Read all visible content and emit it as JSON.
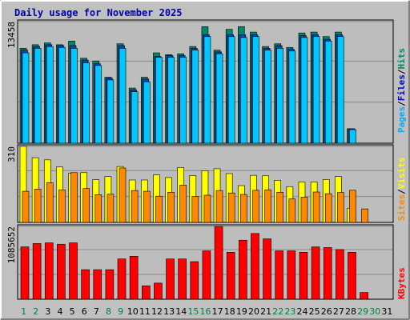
{
  "title": "Daily usage for November 2025",
  "colors": {
    "background": "#c0c0c0",
    "panel": "#bdbdbd",
    "grid": "#8a8a8a",
    "pages": "#00c8ff",
    "files": "#0044cc",
    "hits": "#008866",
    "visits": "#ffff00",
    "sites": "#ff8800",
    "kbytes": "#ff0000",
    "weekend": "#008040",
    "weekday": "#000000",
    "title": "#0000aa"
  },
  "vertical_labels": {
    "top": [
      {
        "text": "Pages",
        "color": "#00aaff"
      },
      {
        "text": "/",
        "color": "#000000"
      },
      {
        "text": "Files",
        "color": "#0000cc"
      },
      {
        "text": "/",
        "color": "#000000"
      },
      {
        "text": "Hits",
        "color": "#008866"
      }
    ],
    "middle": [
      {
        "text": "Sites",
        "color": "#ff8800"
      },
      {
        "text": "/",
        "color": "#000000"
      },
      {
        "text": "Visits",
        "color": "#ffff00"
      }
    ],
    "bottom": [
      {
        "text": "KBytes",
        "color": "#ff0000"
      }
    ]
  },
  "chart_data": [
    {
      "type": "bar",
      "title": "Daily usage for November 2025",
      "x": [
        "1",
        "2",
        "3",
        "4",
        "5",
        "6",
        "7",
        "8",
        "9",
        "10",
        "11",
        "12",
        "13",
        "14",
        "15",
        "16",
        "17",
        "18",
        "19",
        "20",
        "21",
        "22",
        "23",
        "24",
        "25",
        "26",
        "27",
        "28",
        "29",
        "30",
        "31"
      ],
      "weekend_days": [
        "1",
        "2",
        "8",
        "9",
        "15",
        "16",
        "22",
        "23",
        "29",
        "30"
      ],
      "ymax_label": "13458",
      "ylim": [
        0,
        13458
      ],
      "series": [
        {
          "name": "Hits",
          "values": [
            10500,
            10900,
            11100,
            10900,
            11300,
            9400,
            9100,
            7300,
            11000,
            6100,
            7300,
            10000,
            9800,
            9900,
            10700,
            12900,
            10300,
            12600,
            12900,
            12300,
            10700,
            11000,
            10600,
            12200,
            12300,
            11800,
            12300,
            1600,
            0,
            0,
            0
          ]
        },
        {
          "name": "Files",
          "values": [
            10300,
            10700,
            10900,
            10800,
            10800,
            9200,
            8800,
            7200,
            10800,
            5900,
            7100,
            9600,
            9700,
            9700,
            10500,
            12000,
            10100,
            12000,
            12000,
            12000,
            10500,
            10800,
            10400,
            11900,
            12000,
            11500,
            12000,
            1600,
            0,
            0,
            0
          ]
        },
        {
          "name": "Pages",
          "values": [
            10000,
            10500,
            10700,
            10600,
            10500,
            8900,
            8600,
            7000,
            10500,
            5700,
            6800,
            9500,
            9500,
            9500,
            10300,
            11800,
            9900,
            11800,
            11700,
            11800,
            10300,
            10500,
            10200,
            11700,
            11800,
            11300,
            11800,
            1500,
            0,
            0,
            0
          ]
        }
      ]
    },
    {
      "type": "bar",
      "x": [
        "1",
        "2",
        "3",
        "4",
        "5",
        "6",
        "7",
        "8",
        "9",
        "10",
        "11",
        "12",
        "13",
        "14",
        "15",
        "16",
        "17",
        "18",
        "19",
        "20",
        "21",
        "22",
        "23",
        "24",
        "25",
        "26",
        "27",
        "28",
        "29",
        "30",
        "31"
      ],
      "ymax_label": "310",
      "ylim": [
        0,
        310
      ],
      "series": [
        {
          "name": "Visits",
          "values": [
            310,
            264,
            255,
            226,
            200,
            203,
            174,
            187,
            228,
            173,
            173,
            194,
            183,
            224,
            191,
            211,
            219,
            199,
            150,
            192,
            190,
            172,
            146,
            165,
            165,
            175,
            187,
            58,
            0,
            0,
            0
          ]
        },
        {
          "name": "Sites",
          "values": [
            127,
            136,
            162,
            133,
            203,
            138,
            113,
            115,
            222,
            130,
            127,
            107,
            123,
            152,
            106,
            111,
            130,
            120,
            114,
            131,
            133,
            123,
            96,
            103,
            124,
            117,
            122,
            131,
            55,
            0,
            0
          ]
        }
      ]
    },
    {
      "type": "bar",
      "x": [
        "1",
        "2",
        "3",
        "4",
        "5",
        "6",
        "7",
        "8",
        "9",
        "10",
        "11",
        "12",
        "13",
        "14",
        "15",
        "16",
        "17",
        "18",
        "19",
        "20",
        "21",
        "22",
        "23",
        "24",
        "25",
        "26",
        "27",
        "28",
        "29",
        "30",
        "31"
      ],
      "ymax_label": "1085652",
      "ylim": [
        0,
        1085652
      ],
      "series": [
        {
          "name": "KBytes",
          "values": [
            780000,
            830000,
            840000,
            820000,
            840000,
            440000,
            440000,
            440000,
            600000,
            640000,
            200000,
            240000,
            600000,
            600000,
            560000,
            720000,
            1085652,
            700000,
            880000,
            980000,
            900000,
            720000,
            720000,
            700000,
            780000,
            770000,
            740000,
            700000,
            100000,
            0,
            0
          ]
        }
      ]
    }
  ]
}
